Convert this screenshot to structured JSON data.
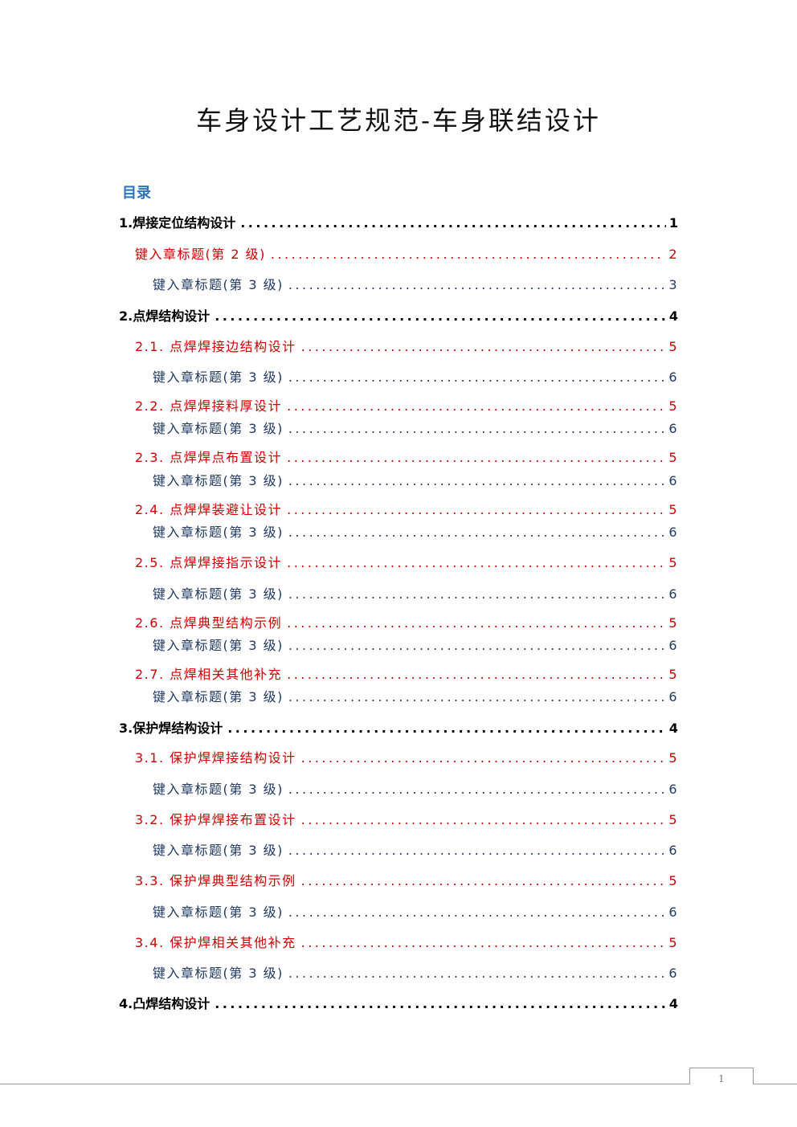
{
  "document": {
    "title": "车身设计工艺规范-车身联结设计",
    "toc_heading": "目录",
    "page_number": "1"
  },
  "toc": [
    {
      "label": "1.焊接定位结构设计",
      "page": "1",
      "level": 1
    },
    {
      "label": "键入章标题(第 2 级)",
      "page": "2",
      "level": 2
    },
    {
      "label": "键入章标题(第 3 级)",
      "page": "3",
      "level": 3
    },
    {
      "label": "2.点焊结构设计",
      "page": "4",
      "level": 1
    },
    {
      "label": "2.1. 点焊焊接边结构设计",
      "page": "5",
      "level": 2
    },
    {
      "label": "键入章标题(第 3 级)",
      "page": "6",
      "level": 3
    },
    {
      "label": "2.2. 点焊焊接料厚设计",
      "page": "5",
      "level": 2
    },
    {
      "label": "键入章标题(第 3 级)",
      "page": "6",
      "level": 3
    },
    {
      "label": "2.3. 点焊焊点布置设计",
      "page": "5",
      "level": 2
    },
    {
      "label": "键入章标题(第 3 级)",
      "page": "6",
      "level": 3
    },
    {
      "label": "2.4. 点焊焊装避让设计",
      "page": "5",
      "level": 2
    },
    {
      "label": "键入章标题(第 3 级)",
      "page": "6",
      "level": 3
    },
    {
      "label": "2.5. 点焊焊接指示设计",
      "page": "5",
      "level": 2
    },
    {
      "label": "键入章标题(第 3 级)",
      "page": "6",
      "level": 3
    },
    {
      "label": "2.6. 点焊典型结构示例",
      "page": "5",
      "level": 2
    },
    {
      "label": "键入章标题(第 3 级)",
      "page": "6",
      "level": 3
    },
    {
      "label": "2.7. 点焊相关其他补充",
      "page": "5",
      "level": 2
    },
    {
      "label": "键入章标题(第 3 级)",
      "page": "6",
      "level": 3
    },
    {
      "label": "3.保护焊结构设计",
      "page": "4",
      "level": 1
    },
    {
      "label": "3.1. 保护焊焊接结构设计",
      "page": "5",
      "level": 2
    },
    {
      "label": "键入章标题(第 3 级)",
      "page": "6",
      "level": 3
    },
    {
      "label": "3.2. 保护焊焊接布置设计",
      "page": "5",
      "level": 2
    },
    {
      "label": "键入章标题(第 3 级)",
      "page": "6",
      "level": 3
    },
    {
      "label": "3.3. 保护焊典型结构示例",
      "page": "5",
      "level": 2
    },
    {
      "label": "键入章标题(第 3 级)",
      "page": "6",
      "level": 3
    },
    {
      "label": "3.4. 保护焊相关其他补充",
      "page": "5",
      "level": 2
    },
    {
      "label": "键入章标题(第 3 级)",
      "page": "6",
      "level": 3
    },
    {
      "label": "4.凸焊结构设计",
      "page": "4",
      "level": 1
    }
  ]
}
